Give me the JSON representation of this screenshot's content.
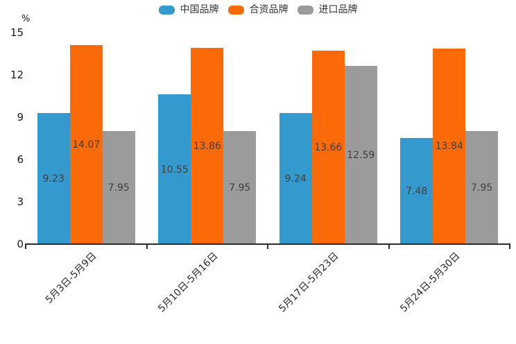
{
  "unit_label": "%",
  "legend": {
    "items": [
      {
        "label": "中国品牌",
        "color": "#3499CD"
      },
      {
        "label": "合资品牌",
        "color": "#FB6A08"
      },
      {
        "label": "进口品牌",
        "color": "#9B9B9B"
      }
    ]
  },
  "chart_data": {
    "type": "bar",
    "title": "",
    "xlabel": "",
    "ylabel": "%",
    "ylim": [
      0,
      15
    ],
    "yticks": [
      0,
      3,
      6,
      9,
      12,
      15
    ],
    "grid": false,
    "legend_position": "top",
    "categories": [
      "5月3日-5月9日",
      "5月10日-5月16日",
      "5月17日-5月23日",
      "5月24日-5月30日"
    ],
    "series": [
      {
        "name": "中国品牌",
        "color": "#3499CD",
        "values": [
          9.23,
          10.55,
          9.24,
          7.48
        ]
      },
      {
        "name": "合资品牌",
        "color": "#FB6A08",
        "values": [
          14.07,
          13.86,
          13.66,
          13.84
        ]
      },
      {
        "name": "进口品牌",
        "color": "#9B9B9B",
        "values": [
          7.95,
          7.95,
          12.59,
          7.95
        ]
      }
    ],
    "value_labels_shown": true
  }
}
